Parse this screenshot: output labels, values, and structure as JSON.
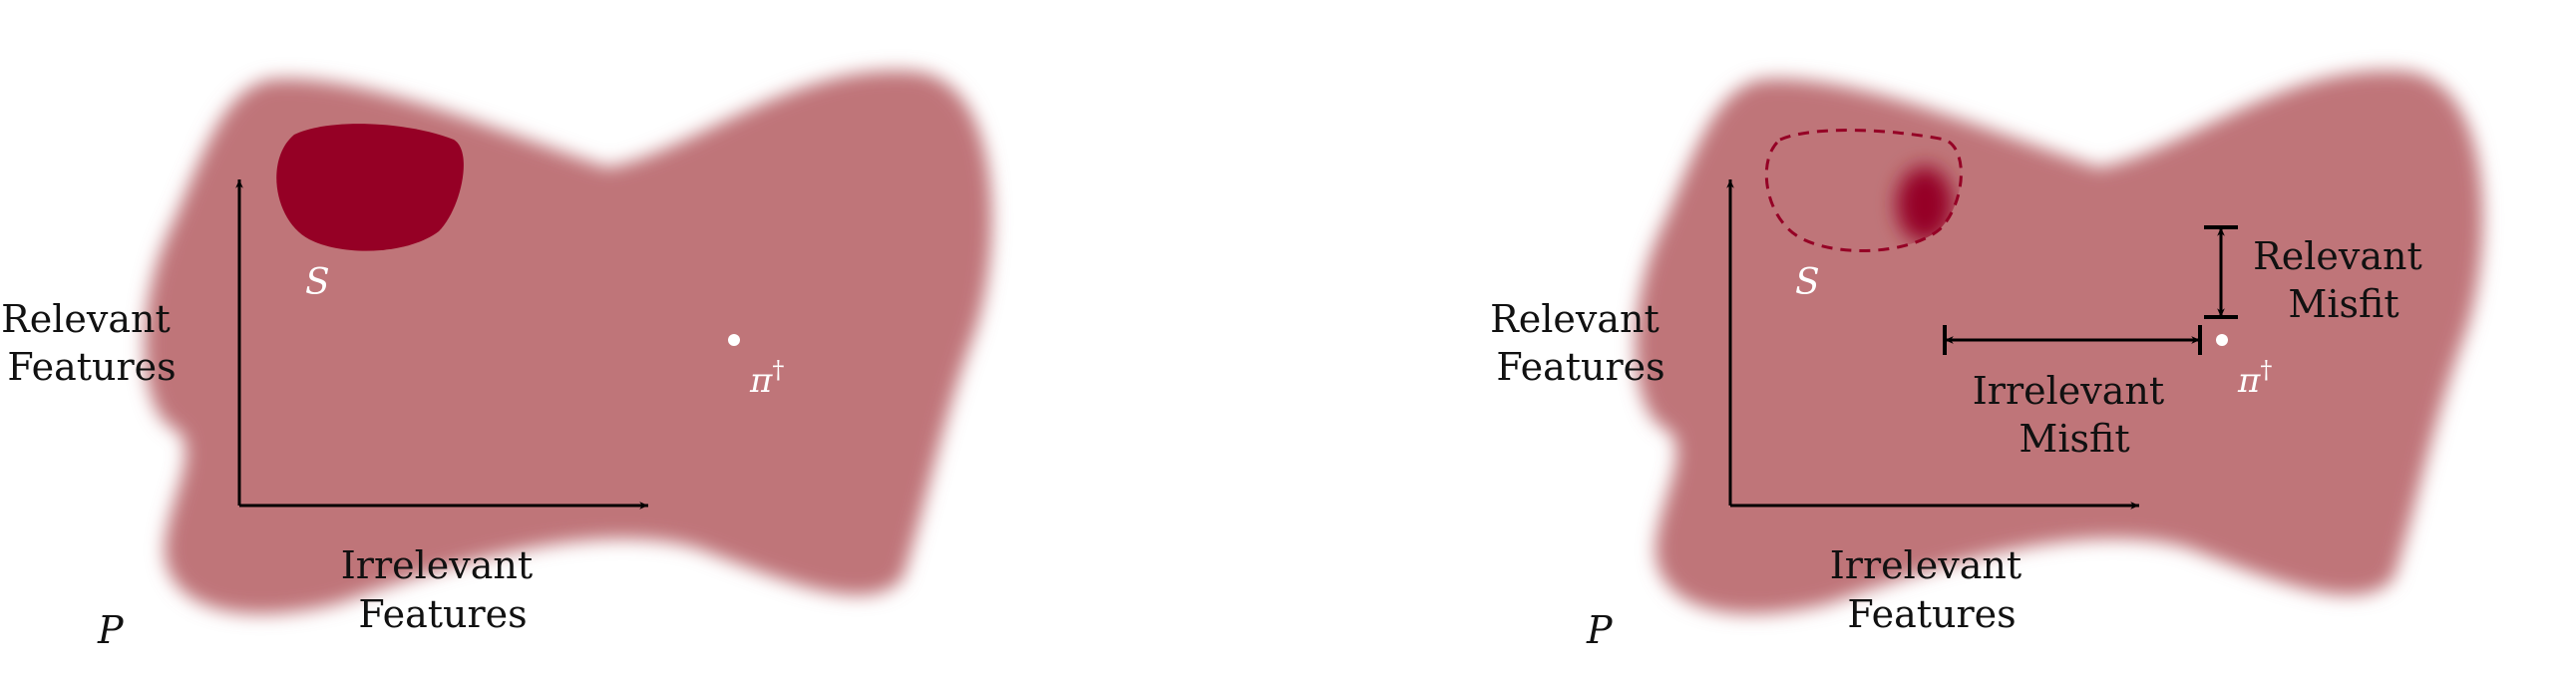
{
  "colors": {
    "region_fill": "#bf7479",
    "subset_fill": "#950025",
    "subset_outline": "#950025",
    "axis": "#000000",
    "point": "#ffffff",
    "text": "#111111"
  },
  "panels": [
    {
      "id": "left",
      "ylabel_line1": "Relevant",
      "ylabel_line2": "Features",
      "xlabel_line1": "Irrelevant",
      "xlabel_line2": "Features",
      "subset_label": "S",
      "point_label": "π",
      "point_label_sup": "†",
      "space_label": "P"
    },
    {
      "id": "right",
      "ylabel_line1": "Relevant",
      "ylabel_line2": "Features",
      "xlabel_line1": "Irrelevant",
      "xlabel_line2": "Features",
      "subset_label": "S",
      "point_label": "π",
      "point_label_sup": "†",
      "space_label": "P",
      "irrelevant_misfit_line1": "Irrelevant",
      "irrelevant_misfit_line2": "Misfit",
      "relevant_misfit_line1": "Relevant",
      "relevant_misfit_line2": "Misfit"
    }
  ]
}
